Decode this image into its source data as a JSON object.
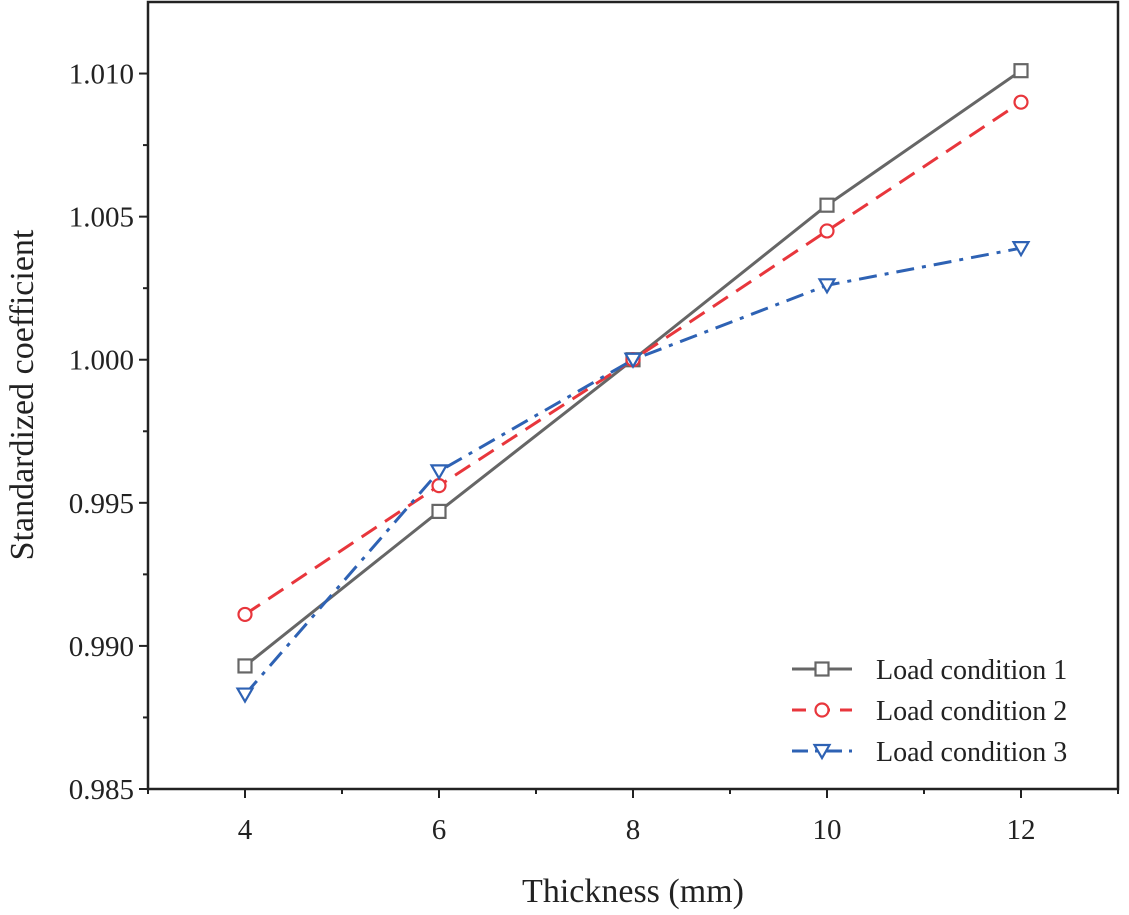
{
  "chart_data": {
    "type": "line",
    "title": "",
    "xlabel": "Thickness (mm)",
    "ylabel": "Standardized  coefficient",
    "xlim": [
      3,
      13
    ],
    "ylim": [
      0.985,
      1.0125
    ],
    "xticks": [
      4,
      6,
      8,
      10,
      12
    ],
    "xtick_labels": [
      "4",
      "6",
      "8",
      "10",
      "12"
    ],
    "yticks": [
      0.985,
      0.99,
      0.995,
      1.0,
      1.005,
      1.01
    ],
    "ytick_labels": [
      "0.985",
      "0.990",
      "0.995",
      "1.000",
      "1.005",
      "1.010"
    ],
    "grid": false,
    "legend_position": "bottom-right",
    "x": [
      4,
      6,
      8,
      10,
      12
    ],
    "series": [
      {
        "name": "Load condition 1",
        "values": [
          0.9893,
          0.9947,
          1.0,
          1.0054,
          1.0101
        ],
        "color": "#666666",
        "line_style": "solid",
        "marker": "square"
      },
      {
        "name": "Load condition 2",
        "values": [
          0.9911,
          0.9956,
          1.0,
          1.0045,
          1.009
        ],
        "color": "#e8363c",
        "line_style": "dashed",
        "marker": "circle"
      },
      {
        "name": "Load condition 3",
        "values": [
          0.9883,
          0.9961,
          1.0,
          1.0026,
          1.0039
        ],
        "color": "#2e62b4",
        "line_style": "dash-dot",
        "marker": "triangle-down"
      }
    ]
  }
}
